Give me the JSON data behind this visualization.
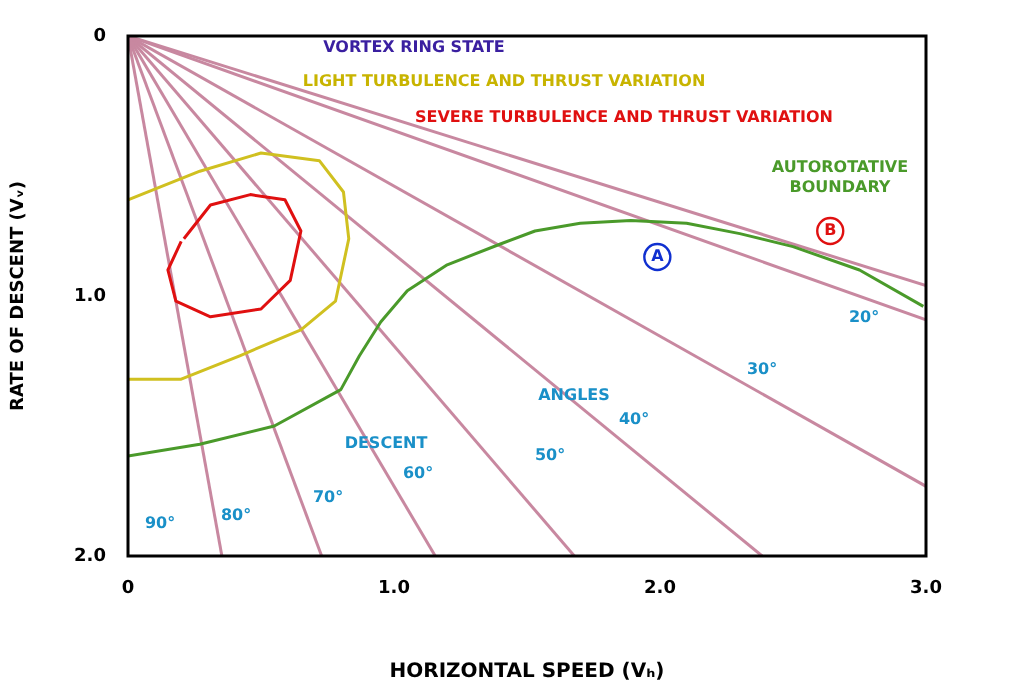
{
  "chart_data": {
    "type": "line",
    "xlabel": "HORIZONTAL SPEED (Vₕ)",
    "ylabel": "RATE OF DESCENT (Vᵥ)",
    "xlim": [
      0,
      3
    ],
    "xticks": [
      0,
      {
        "value": 1,
        "label": "1.0"
      },
      {
        "value": 2,
        "label": "2.0"
      },
      {
        "value": 3,
        "label": "3.0"
      }
    ],
    "ylim": [
      2,
      0
    ],
    "yticks": [
      0,
      {
        "value": 1,
        "label": "1.0"
      },
      {
        "value": 2,
        "label": "2.0"
      }
    ],
    "grid": false,
    "legend": false,
    "marker": "none",
    "line_style": "solid",
    "series": [
      {
        "color": "#4a9a2a",
        "x": [
          0,
          0.27,
          0.55,
          0.8,
          0.87,
          0.95,
          1.05,
          1.2,
          1.4,
          1.53,
          1.7,
          1.89,
          2.1,
          2.3,
          2.5,
          2.75,
          2.99
        ],
        "values": [
          1.615,
          1.57,
          1.5,
          1.36,
          1.23,
          1.1,
          0.98,
          0.88,
          0.8,
          0.75,
          0.72,
          0.71,
          0.72,
          0.76,
          0.81,
          0.9,
          1.04
        ]
      },
      {
        "color": "#d0c020",
        "x": [
          0,
          0.27,
          0.5,
          0.72,
          0.81,
          0.83,
          0.78,
          0.65,
          0.42,
          0.2,
          0
        ],
        "values": [
          0.63,
          0.52,
          0.45,
          0.48,
          0.6,
          0.78,
          1.02,
          1.13,
          1.23,
          1.32,
          1.32
        ]
      },
      {
        "color": "#e01010",
        "x": [
          0.21,
          0.31,
          0.46,
          0.59,
          0.65,
          0.61,
          0.5,
          0.31,
          0.18,
          0.15,
          0.2
        ],
        "values": [
          0.78,
          0.65,
          0.61,
          0.63,
          0.75,
          0.94,
          1.05,
          1.08,
          1.02,
          0.9,
          0.79
        ]
      },
      {
        "color": "#c888a0",
        "x": [
          0,
          0.353
        ],
        "values": [
          0,
          2
        ]
      },
      {
        "color": "#c888a0",
        "x": [
          0,
          0.728
        ],
        "values": [
          0,
          2
        ]
      },
      {
        "color": "#c888a0",
        "x": [
          0,
          1.155
        ],
        "values": [
          0,
          2
        ]
      },
      {
        "color": "#c888a0",
        "x": [
          0,
          1.678
        ],
        "values": [
          0,
          2
        ]
      },
      {
        "color": "#c888a0",
        "x": [
          0,
          2.384
        ],
        "values": [
          0,
          2
        ]
      },
      {
        "color": "#c888a0",
        "x": [
          0,
          3
        ],
        "values": [
          0,
          1.732
        ]
      },
      {
        "color": "#c888a0",
        "x": [
          0,
          3
        ],
        "values": [
          0,
          1.092
        ]
      },
      {
        "color": "#c888a0",
        "x": [
          0,
          3
        ],
        "values": [
          0,
          0.96
        ]
      }
    ],
    "annotations": [
      "VORTEX RING STATE",
      "LIGHT TURBULENCE AND THRUST VARIATION",
      "SEVERE TURBULENCE AND THRUST VARIATION",
      "AUTOROTATIVE",
      "BOUNDARY",
      {
        "text": "A",
        "x": 1.99,
        "y": 0.85
      },
      {
        "text": "B",
        "x": 2.64,
        "y": 0.75
      },
      "DESCENT",
      "ANGLES",
      "90°",
      "80°",
      "70°",
      "60°",
      "50°",
      "40°",
      "30°",
      "20°"
    ]
  }
}
